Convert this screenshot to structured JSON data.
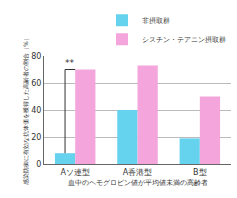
{
  "chart_data": {
    "type": "bar",
    "categories": [
      "Aソ連型",
      "A香港型",
      "B型"
    ],
    "series": [
      {
        "name": "非摂取群",
        "color": "#66d3ee",
        "values": [
          8,
          40,
          19
        ]
      },
      {
        "name": "シスチン・テアニン摂取群",
        "color": "#f4a6dc",
        "values": [
          70,
          73,
          50
        ]
      }
    ],
    "ylabel": "感染防御に有効な抗体価を獲得した高齢者の割合（%）",
    "xlabel": "血中のヘモグロビン値が平均値未満の高齢者",
    "significance": {
      "category": "Aソ連型",
      "label": "**"
    },
    "ylim": [
      0,
      80
    ],
    "yticks": [
      0,
      20,
      40,
      60,
      80
    ],
    "grid": true,
    "legend": "top right"
  }
}
